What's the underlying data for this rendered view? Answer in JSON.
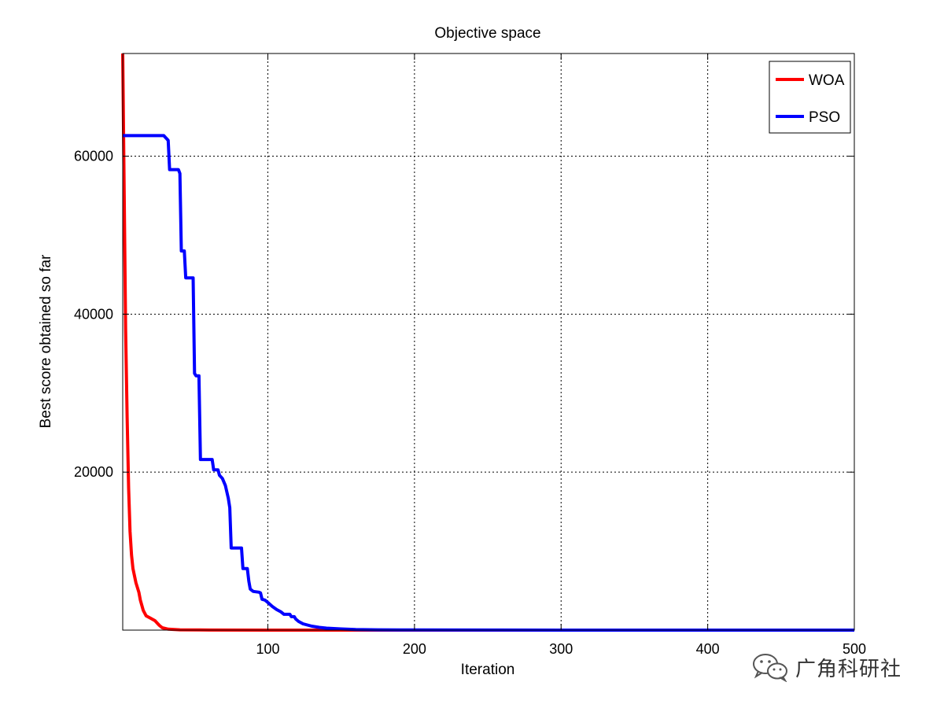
{
  "chart_data": {
    "type": "line",
    "title": "Objective space",
    "xlabel": "Iteration",
    "ylabel": "Best score obtained so far",
    "xlim": [
      1,
      500
    ],
    "ylim": [
      0,
      73000
    ],
    "xticks": [
      100,
      200,
      300,
      400,
      500
    ],
    "yticks": [
      20000,
      40000,
      60000
    ],
    "x_tick_labels": [
      "100",
      "200",
      "300",
      "400",
      "500"
    ],
    "y_tick_labels": [
      "20000",
      "40000",
      "60000"
    ],
    "grid": true,
    "legend_position": "top-right",
    "series": [
      {
        "name": "WOA",
        "color": "#ff0000",
        "points": [
          [
            1,
            73000
          ],
          [
            2,
            55000
          ],
          [
            3,
            38000
          ],
          [
            4,
            27000
          ],
          [
            5,
            18000
          ],
          [
            6,
            12500
          ],
          [
            7,
            9500
          ],
          [
            8,
            7800
          ],
          [
            10,
            6000
          ],
          [
            12,
            4800
          ],
          [
            13,
            3800
          ],
          [
            15,
            2500
          ],
          [
            17,
            1800
          ],
          [
            20,
            1500
          ],
          [
            23,
            1200
          ],
          [
            26,
            600
          ],
          [
            28,
            300
          ],
          [
            32,
            120
          ],
          [
            40,
            40
          ],
          [
            60,
            10
          ],
          [
            100,
            2
          ],
          [
            200,
            0
          ],
          [
            500,
            0
          ]
        ]
      },
      {
        "name": "PSO",
        "color": "#0000ff",
        "points": [
          [
            1,
            62600
          ],
          [
            29,
            62600
          ],
          [
            30,
            62400
          ],
          [
            31,
            62200
          ],
          [
            32,
            62000
          ],
          [
            33,
            58300
          ],
          [
            39,
            58300
          ],
          [
            40,
            57800
          ],
          [
            41,
            48000
          ],
          [
            43,
            48000
          ],
          [
            44,
            44600
          ],
          [
            49,
            44600
          ],
          [
            50,
            32500
          ],
          [
            51,
            32200
          ],
          [
            53,
            32200
          ],
          [
            54,
            21600
          ],
          [
            62,
            21600
          ],
          [
            63,
            20300
          ],
          [
            66,
            20300
          ],
          [
            67,
            19600
          ],
          [
            69,
            19200
          ],
          [
            71,
            18300
          ],
          [
            73,
            16700
          ],
          [
            74,
            15500
          ],
          [
            75,
            10400
          ],
          [
            82,
            10400
          ],
          [
            83,
            7800
          ],
          [
            86,
            7800
          ],
          [
            87,
            6200
          ],
          [
            88,
            5200
          ],
          [
            90,
            4900
          ],
          [
            94,
            4800
          ],
          [
            95,
            4700
          ],
          [
            96,
            3900
          ],
          [
            98,
            3800
          ],
          [
            100,
            3500
          ],
          [
            103,
            3000
          ],
          [
            106,
            2600
          ],
          [
            109,
            2300
          ],
          [
            111,
            2000
          ],
          [
            115,
            2000
          ],
          [
            116,
            1700
          ],
          [
            118,
            1700
          ],
          [
            119,
            1400
          ],
          [
            121,
            1100
          ],
          [
            124,
            800
          ],
          [
            127,
            650
          ],
          [
            130,
            500
          ],
          [
            135,
            350
          ],
          [
            140,
            250
          ],
          [
            150,
            150
          ],
          [
            160,
            80
          ],
          [
            175,
            40
          ],
          [
            200,
            15
          ],
          [
            250,
            5
          ],
          [
            300,
            1
          ],
          [
            500,
            0
          ]
        ]
      }
    ]
  },
  "watermark": {
    "text": "广角科研社",
    "icon": "wechat-icon"
  }
}
